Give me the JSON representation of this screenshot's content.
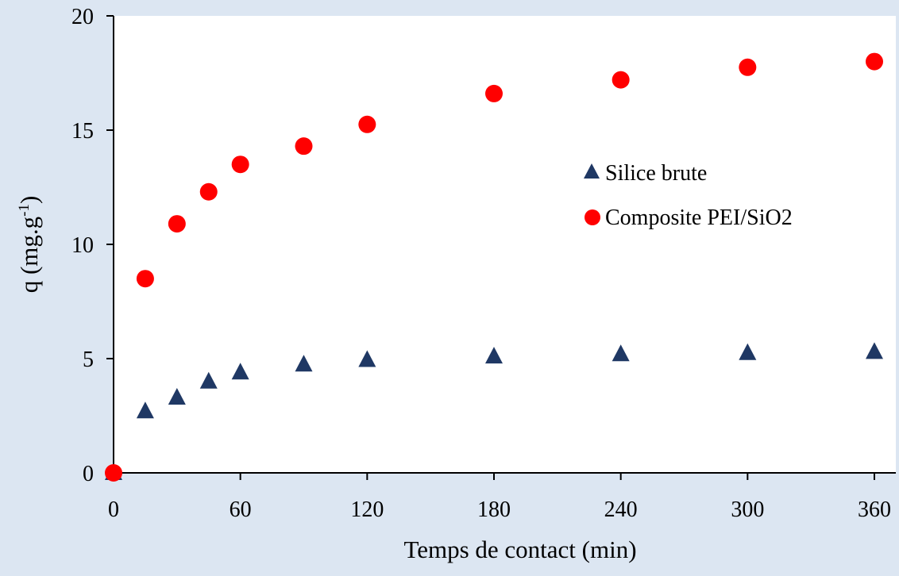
{
  "chart_data": {
    "type": "scatter",
    "xlabel": "Temps de contact (min)",
    "ylabel_main": "q (mg.g",
    "ylabel_sup": "-1",
    "ylabel_close": ")",
    "xlim": [
      0,
      360
    ],
    "ylim": [
      0,
      20
    ],
    "xticks": [
      0,
      60,
      120,
      180,
      240,
      300,
      360
    ],
    "yticks": [
      0,
      5,
      10,
      15,
      20
    ],
    "grid": false,
    "legend_position": "right-middle",
    "series": [
      {
        "name": "Silice brute",
        "marker": "triangle",
        "color": "#1f3864",
        "x": [
          0,
          15,
          30,
          45,
          60,
          90,
          120,
          180,
          240,
          300,
          360
        ],
        "y": [
          0,
          2.7,
          3.3,
          4.0,
          4.4,
          4.75,
          4.95,
          5.1,
          5.2,
          5.25,
          5.3
        ]
      },
      {
        "name": "Composite PEI/SiO2",
        "marker": "circle",
        "color": "#ff0000",
        "x": [
          0,
          15,
          30,
          45,
          60,
          90,
          120,
          180,
          240,
          300,
          360
        ],
        "y": [
          0,
          8.5,
          10.9,
          12.3,
          13.5,
          14.3,
          15.25,
          16.6,
          17.2,
          17.75,
          18.0
        ]
      }
    ]
  }
}
